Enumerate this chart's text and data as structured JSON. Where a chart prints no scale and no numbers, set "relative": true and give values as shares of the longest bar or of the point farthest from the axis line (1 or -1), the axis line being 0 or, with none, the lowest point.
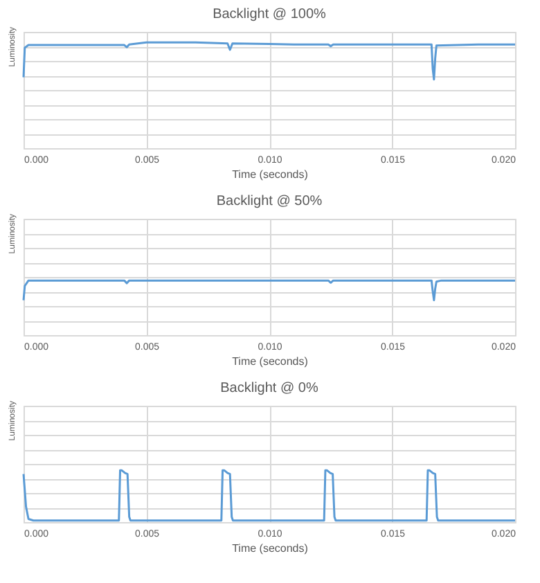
{
  "chart_data": [
    {
      "type": "line",
      "title": "Backlight @ 100%",
      "xlabel": "Time (seconds)",
      "ylabel": "Luminosity",
      "relative": true,
      "grid": true,
      "tick_labels": "x",
      "xlim": [
        0,
        0.02
      ],
      "xticks": [
        {
          "value": 0,
          "label": "0.000"
        },
        {
          "value": 0.005,
          "label": "0.005"
        },
        {
          "value": 0.01,
          "label": "0.010"
        },
        {
          "value": 0.015,
          "label": "0.015"
        },
        {
          "value": 0.02,
          "label": "0.020"
        }
      ],
      "series": [
        {
          "color": "#5b9bd5",
          "x": [
            0,
            5e-05,
            0.0002,
            0.002,
            0.0041,
            0.0042,
            0.0043,
            0.005,
            0.007,
            0.0083,
            0.0084,
            0.0085,
            0.01,
            0.011,
            0.0124,
            0.0125,
            0.0126,
            0.015,
            0.0166,
            0.01665,
            0.0167,
            0.01675,
            0.0168,
            0.0185,
            0.02
          ],
          "values": [
            0.67,
            0.95,
            0.975,
            0.975,
            0.975,
            0.955,
            0.98,
            1.0,
            1.0,
            0.99,
            0.93,
            0.99,
            0.985,
            0.98,
            0.98,
            0.965,
            0.98,
            0.98,
            0.98,
            0.75,
            0.65,
            0.85,
            0.97,
            0.98,
            0.98
          ]
        }
      ]
    },
    {
      "type": "line",
      "title": "Backlight @ 50%",
      "xlabel": "Time (seconds)",
      "ylabel": "Luminosity",
      "relative": true,
      "grid": true,
      "tick_labels": "x",
      "xlim": [
        0,
        0.02
      ],
      "xticks": [
        {
          "value": 0,
          "label": "0.000"
        },
        {
          "value": 0.005,
          "label": "0.005"
        },
        {
          "value": 0.01,
          "label": "0.010"
        },
        {
          "value": 0.015,
          "label": "0.015"
        },
        {
          "value": 0.02,
          "label": "0.020"
        }
      ],
      "series": [
        {
          "color": "#5b9bd5",
          "x": [
            0,
            5e-05,
            0.0002,
            0.0041,
            0.0042,
            0.0043,
            0.0124,
            0.0125,
            0.0126,
            0.0166,
            0.01665,
            0.0167,
            0.01675,
            0.0168,
            0.017,
            0.02
          ],
          "values": [
            0.64,
            0.9,
            1.0,
            1.0,
            0.95,
            1.0,
            1.0,
            0.96,
            1.0,
            1.0,
            0.8,
            0.64,
            0.85,
            0.98,
            1.0,
            1.0
          ]
        }
      ]
    },
    {
      "type": "line",
      "title": "Backlight @ 0%",
      "xlabel": "Time (seconds)",
      "ylabel": "Luminosity",
      "relative": true,
      "grid": true,
      "tick_labels": "x",
      "xlim": [
        0,
        0.02
      ],
      "xticks": [
        {
          "value": 0,
          "label": "0.000"
        },
        {
          "value": 0.005,
          "label": "0.005"
        },
        {
          "value": 0.01,
          "label": "0.010"
        },
        {
          "value": 0.015,
          "label": "0.015"
        },
        {
          "value": 0.02,
          "label": "0.020"
        }
      ],
      "series": [
        {
          "color": "#5b9bd5",
          "x": [
            0,
            0.0001,
            0.0002,
            0.0004,
            0.00388,
            0.00393,
            0.004,
            0.00413,
            0.00423,
            0.0043,
            0.00435,
            0.006,
            0.00805,
            0.0081,
            0.00817,
            0.0083,
            0.0084,
            0.00847,
            0.00852,
            0.01,
            0.01223,
            0.01228,
            0.01235,
            0.01248,
            0.01258,
            0.01265,
            0.0127,
            0.014,
            0.0164,
            0.01645,
            0.01652,
            0.01665,
            0.01675,
            0.01682,
            0.01687,
            0.02
          ],
          "values": [
            0.93,
            0.3,
            0.06,
            0.03,
            0.03,
            1.0,
            1.0,
            0.95,
            0.93,
            0.1,
            0.03,
            0.03,
            0.03,
            1.0,
            1.0,
            0.95,
            0.93,
            0.1,
            0.03,
            0.03,
            0.03,
            1.0,
            1.0,
            0.95,
            0.93,
            0.1,
            0.03,
            0.03,
            0.03,
            1.0,
            1.0,
            0.95,
            0.93,
            0.1,
            0.03,
            0.03
          ]
        }
      ]
    }
  ]
}
